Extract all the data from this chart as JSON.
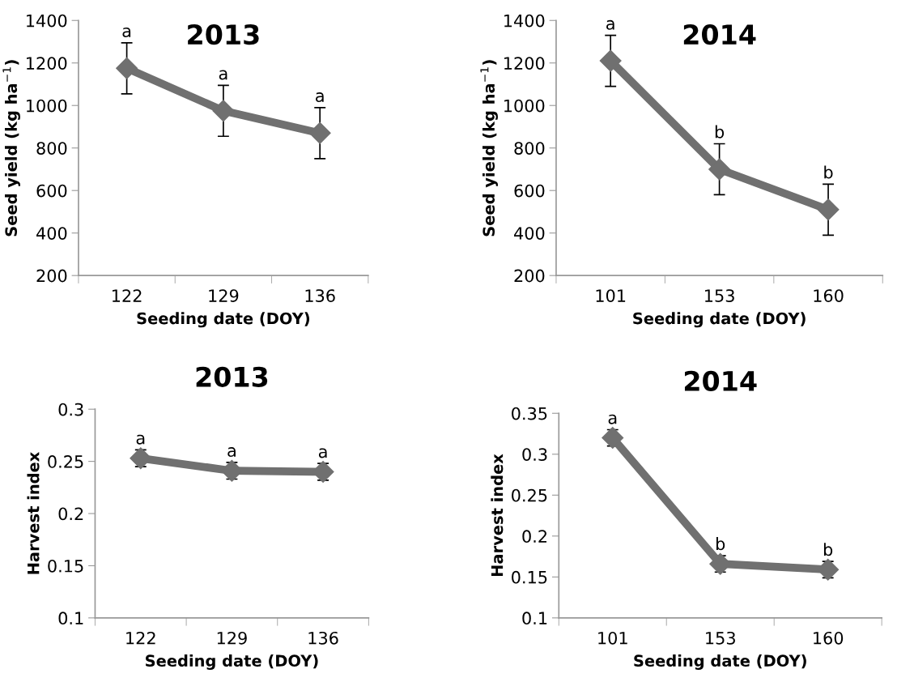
{
  "chart_data": [
    {
      "type": "line",
      "title": "2013",
      "xlabel": "Seeding date (DOY)",
      "ylabel": "Seed yield (kg ha$^{−1}$)",
      "categories": [
        "122",
        "129",
        "136"
      ],
      "series": [
        {
          "color": "#707070",
          "values": [
            1175,
            975,
            870
          ],
          "errors": [
            120,
            120,
            120
          ]
        }
      ],
      "ylim": [
        200,
        1400
      ],
      "yticks": [
        200,
        400,
        600,
        800,
        1000,
        1200,
        1400
      ],
      "marker": "diamond",
      "grid": false,
      "annotations": [
        {
          "text": "a",
          "x": "122",
          "y": 1295
        },
        {
          "text": "a",
          "x": "129",
          "y": 1095
        },
        {
          "text": "a",
          "x": "136",
          "y": 990
        }
      ]
    },
    {
      "type": "line",
      "title": "2014",
      "xlabel": "Seeding date (DOY)",
      "ylabel": "Seed yield (kg ha$^{−1}$)",
      "categories": [
        "101",
        "153",
        "160"
      ],
      "series": [
        {
          "color": "#707070",
          "values": [
            1210,
            700,
            510
          ],
          "errors": [
            120,
            120,
            120
          ]
        }
      ],
      "ylim": [
        200,
        1400
      ],
      "yticks": [
        200,
        400,
        600,
        800,
        1000,
        1200,
        1400
      ],
      "marker": "diamond",
      "grid": false,
      "annotations": [
        {
          "text": "a",
          "x": "101",
          "y": 1330
        },
        {
          "text": "b",
          "x": "153",
          "y": 820
        },
        {
          "text": "b",
          "x": "160",
          "y": 630
        }
      ]
    },
    {
      "type": "line",
      "title": "2013",
      "xlabel": "Seeding date (DOY)",
      "ylabel": "Harvest index",
      "categories": [
        "122",
        "129",
        "136"
      ],
      "series": [
        {
          "color": "#707070",
          "values": [
            0.253,
            0.241,
            0.24
          ],
          "errors": [
            0.008,
            0.008,
            0.008
          ]
        }
      ],
      "ylim": [
        0.1,
        0.3
      ],
      "yticks": [
        {
          "value": 0.1,
          "label": "0.1"
        },
        {
          "value": 0.15,
          "label": "0.15"
        },
        {
          "value": 0.2,
          "label": "0.2"
        },
        {
          "value": 0.25,
          "label": "0.25"
        },
        {
          "value": 0.3,
          "label": "0.3"
        }
      ],
      "marker": "diamond",
      "grid": false,
      "annotations": [
        {
          "text": "a",
          "x": "122",
          "y": 0.261
        },
        {
          "text": "a",
          "x": "129",
          "y": 0.249
        },
        {
          "text": "a",
          "x": "136",
          "y": 0.248
        }
      ]
    },
    {
      "type": "line",
      "title": "2014",
      "xlabel": "Seeding date (DOY)",
      "ylabel": "Harvest index",
      "categories": [
        "101",
        "153",
        "160"
      ],
      "series": [
        {
          "color": "#707070",
          "values": [
            0.32,
            0.166,
            0.159
          ],
          "errors": [
            0.01,
            0.01,
            0.01
          ]
        }
      ],
      "ylim": [
        0.1,
        0.35
      ],
      "yticks": [
        {
          "value": 0.1,
          "label": "0.1"
        },
        {
          "value": 0.15,
          "label": "0.15"
        },
        {
          "value": 0.2,
          "label": "0.2"
        },
        {
          "value": 0.25,
          "label": "0.25"
        },
        {
          "value": 0.3,
          "label": "0.3"
        },
        {
          "value": 0.35,
          "label": "0.35"
        }
      ],
      "marker": "diamond",
      "grid": false,
      "annotations": [
        {
          "text": "a",
          "x": "101",
          "y": 0.33
        },
        {
          "text": "b",
          "x": "153",
          "y": 0.176
        },
        {
          "text": "b",
          "x": "160",
          "y": 0.169
        }
      ]
    }
  ]
}
